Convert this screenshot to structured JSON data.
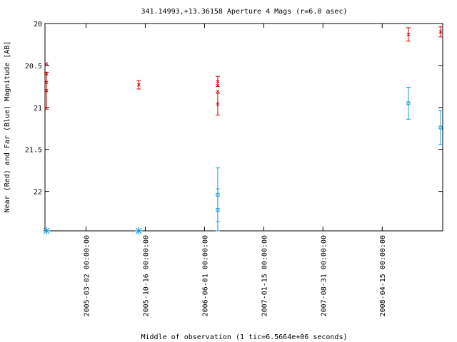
{
  "chart_data": {
    "type": "scatter",
    "title": "341.14993,+13.36158   Aperture 4 Mags (r=6.0 asec)",
    "xlabel": "Middle of observation (1 tic=6.5664e+06 seconds)",
    "ylabel": "Near (Red) and Far (Blue) Magnitude [AB]",
    "y_inverted": true,
    "ylim": [
      22.47,
      20.0
    ],
    "y_ticks": [
      {
        "value": 20,
        "label": "20"
      },
      {
        "value": 20.5,
        "label": "20.5"
      },
      {
        "value": 21,
        "label": "21"
      },
      {
        "value": 21.5,
        "label": "21.5"
      },
      {
        "value": 22,
        "label": "22"
      }
    ],
    "x_axis": {
      "min": "2004-09-25",
      "max": "2008-12-04",
      "ticks": [
        "2005-03-02 00:00:00",
        "2005-10-16 00:00:00",
        "2006-06-01 00:00:00",
        "2007-01-15 00:00:00",
        "2007-08-31 00:00:00",
        "2008-04-15 00:00:00"
      ]
    },
    "grid": false,
    "series": [
      {
        "name": "Near",
        "color": "#cc0000",
        "marker": "x",
        "points": [
          {
            "x": "2004-10-01",
            "y": 20.48,
            "err": 0.0
          },
          {
            "x": "2004-10-01",
            "y": 20.6,
            "err": 0.0
          },
          {
            "x": "2004-10-01",
            "y": 20.7,
            "err": 0.0
          },
          {
            "x": "2004-10-01",
            "y": 20.8,
            "err": 0.22
          },
          {
            "x": "2005-09-21",
            "y": 20.73,
            "err": 0.05
          },
          {
            "x": "2006-07-22",
            "y": 20.69,
            "err": 0.06
          },
          {
            "x": "2006-07-22",
            "y": 20.74,
            "err": 0.0
          },
          {
            "x": "2006-07-22",
            "y": 20.81,
            "err": 0.0
          },
          {
            "x": "2006-07-22",
            "y": 20.96,
            "err": 0.13
          },
          {
            "x": "2008-07-25",
            "y": 20.13,
            "err": 0.08
          },
          {
            "x": "2008-11-26",
            "y": 20.1,
            "err": 0.06
          }
        ]
      },
      {
        "name": "Far",
        "color": "#1a9ad6",
        "marker": "square",
        "points": [
          {
            "x": "2006-07-22",
            "y": 22.04,
            "err": 0.32
          },
          {
            "x": "2006-07-22",
            "y": 22.22,
            "err": 0.25
          },
          {
            "x": "2008-07-25",
            "y": 20.95,
            "err": 0.19
          },
          {
            "x": "2008-11-26",
            "y": 21.24,
            "err": 0.2
          }
        ]
      },
      {
        "name": "Far (limit)",
        "color": "#1a9ad6",
        "marker": "star",
        "points": [
          {
            "x": "2004-10-01",
            "y": 22.47
          },
          {
            "x": "2005-09-21",
            "y": 22.47
          }
        ]
      }
    ]
  }
}
